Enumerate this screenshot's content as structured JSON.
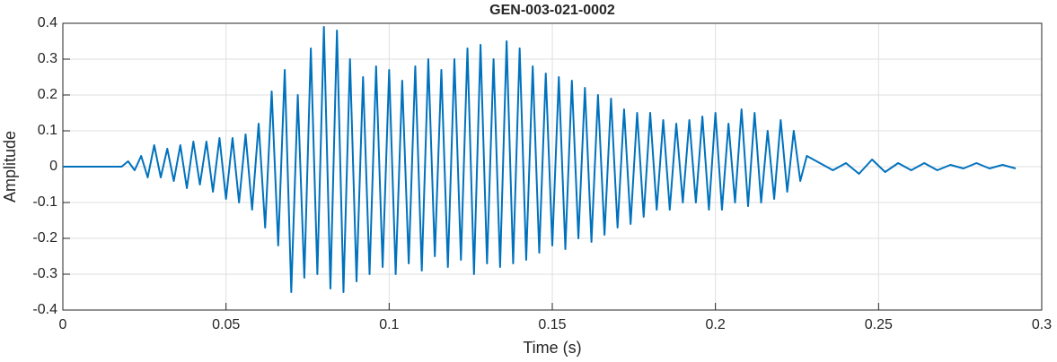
{
  "chart_data": {
    "type": "line",
    "title": "GEN-003-021-0002",
    "xlabel": "Time (s)",
    "ylabel": "Amplitude",
    "xlim": [
      0,
      0.3
    ],
    "xticks": [
      0,
      0.05,
      0.1,
      0.15,
      0.2,
      0.25,
      0.3
    ],
    "ylim": [
      -0.4,
      0.4
    ],
    "yticks": [
      -0.4,
      -0.3,
      -0.2,
      -0.1,
      0,
      0.1,
      0.2,
      0.3,
      0.4
    ],
    "grid": true,
    "series": [
      {
        "color": "#0072bd",
        "x": [
          0,
          0.01,
          0.015,
          0.018,
          0.02,
          0.022,
          0.024,
          0.026,
          0.028,
          0.03,
          0.032,
          0.034,
          0.036,
          0.038,
          0.04,
          0.042,
          0.044,
          0.046,
          0.048,
          0.05,
          0.052,
          0.054,
          0.056,
          0.058,
          0.06,
          0.062,
          0.064,
          0.066,
          0.068,
          0.07,
          0.072,
          0.074,
          0.076,
          0.078,
          0.08,
          0.082,
          0.084,
          0.086,
          0.088,
          0.09,
          0.092,
          0.094,
          0.096,
          0.098,
          0.1,
          0.102,
          0.104,
          0.106,
          0.108,
          0.11,
          0.112,
          0.114,
          0.116,
          0.118,
          0.12,
          0.122,
          0.124,
          0.126,
          0.128,
          0.13,
          0.132,
          0.134,
          0.136,
          0.138,
          0.14,
          0.142,
          0.144,
          0.146,
          0.148,
          0.15,
          0.152,
          0.154,
          0.156,
          0.158,
          0.16,
          0.162,
          0.164,
          0.166,
          0.168,
          0.17,
          0.172,
          0.174,
          0.176,
          0.178,
          0.18,
          0.182,
          0.184,
          0.186,
          0.188,
          0.19,
          0.192,
          0.194,
          0.196,
          0.198,
          0.2,
          0.202,
          0.204,
          0.206,
          0.208,
          0.21,
          0.212,
          0.214,
          0.216,
          0.218,
          0.22,
          0.222,
          0.224,
          0.226,
          0.228,
          0.232,
          0.236,
          0.24,
          0.244,
          0.248,
          0.252,
          0.256,
          0.26,
          0.264,
          0.268,
          0.272,
          0.276,
          0.28,
          0.284,
          0.288,
          0.292
        ],
        "values": [
          0,
          0,
          0,
          0,
          0.015,
          -0.01,
          0.03,
          -0.03,
          0.06,
          -0.03,
          0.05,
          -0.04,
          0.06,
          -0.06,
          0.07,
          -0.05,
          0.07,
          -0.07,
          0.08,
          -0.09,
          0.08,
          -0.1,
          0.09,
          -0.12,
          0.12,
          -0.17,
          0.21,
          -0.22,
          0.27,
          -0.35,
          0.2,
          -0.31,
          0.33,
          -0.3,
          0.39,
          -0.34,
          0.38,
          -0.35,
          0.3,
          -0.32,
          0.25,
          -0.3,
          0.28,
          -0.28,
          0.27,
          -0.3,
          0.24,
          -0.27,
          0.28,
          -0.29,
          0.3,
          -0.25,
          0.27,
          -0.28,
          0.3,
          -0.26,
          0.33,
          -0.3,
          0.34,
          -0.27,
          0.3,
          -0.28,
          0.35,
          -0.27,
          0.33,
          -0.26,
          0.28,
          -0.24,
          0.26,
          -0.22,
          0.25,
          -0.23,
          0.24,
          -0.2,
          0.22,
          -0.21,
          0.2,
          -0.19,
          0.19,
          -0.17,
          0.16,
          -0.16,
          0.15,
          -0.14,
          0.15,
          -0.12,
          0.13,
          -0.12,
          0.12,
          -0.1,
          0.13,
          -0.1,
          0.14,
          -0.12,
          0.15,
          -0.12,
          0.12,
          -0.1,
          0.16,
          -0.11,
          0.15,
          -0.1,
          0.1,
          -0.09,
          0.13,
          -0.07,
          0.1,
          -0.04,
          0.03,
          0.01,
          -0.01,
          0.01,
          -0.02,
          0.02,
          -0.015,
          0.01,
          -0.01,
          0.01,
          -0.01,
          0.005,
          -0.005,
          0.01,
          -0.005,
          0.005,
          -0.005
        ]
      }
    ]
  }
}
